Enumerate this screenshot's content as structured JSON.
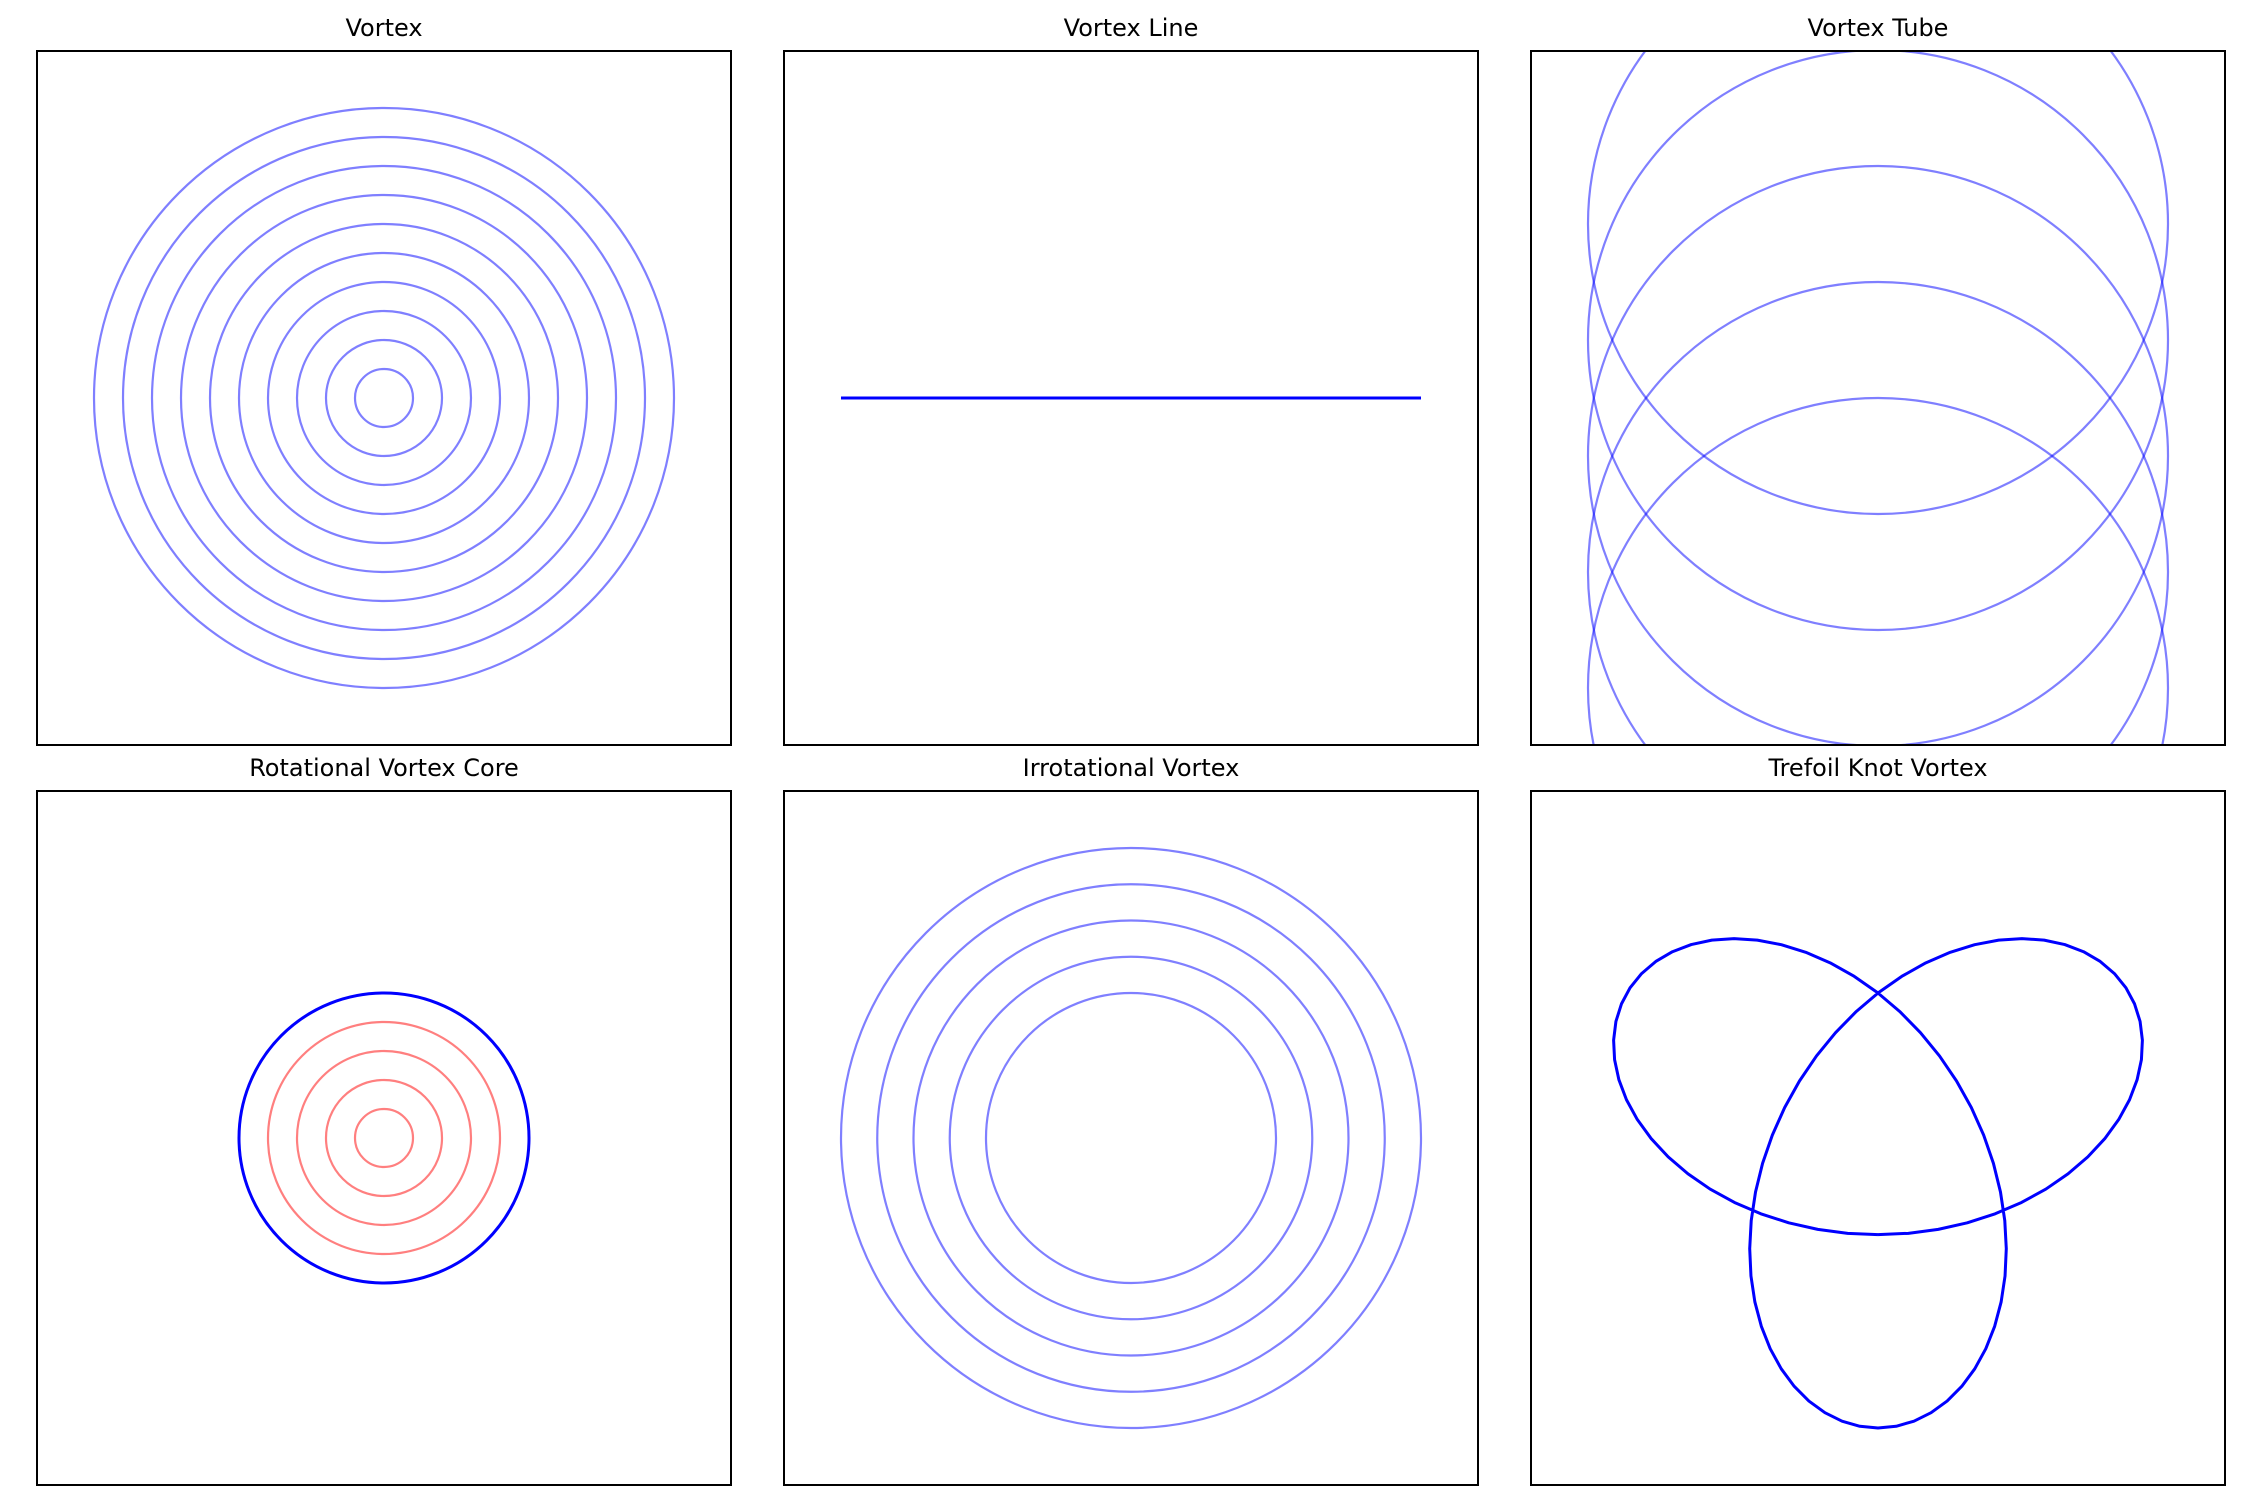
{
  "colors": {
    "primary": "#0000ff",
    "core": "#ff0000"
  },
  "chart_data": [
    {
      "type": "line",
      "title": "Vortex",
      "xlim": [
        -1.2,
        1.2
      ],
      "ylim": [
        -1.2,
        1.2
      ],
      "grid": false,
      "axes_ticks": false,
      "series": [
        {
          "kind": "circles",
          "center": [
            0,
            0
          ],
          "radii": [
            0.1,
            0.2,
            0.3,
            0.4,
            0.5,
            0.6,
            0.7,
            0.8,
            0.9,
            1.0
          ],
          "color": "#0000ff",
          "alpha": 0.5
        }
      ]
    },
    {
      "type": "line",
      "title": "Vortex Line",
      "xlim": [
        -1.2,
        1.2
      ],
      "ylim": [
        -1.2,
        1.2
      ],
      "grid": false,
      "axes_ticks": false,
      "series": [
        {
          "kind": "line",
          "x": [
            -1,
            1
          ],
          "y": [
            0,
            0
          ],
          "color": "#0000ff",
          "alpha": 1.0,
          "width": 2
        }
      ]
    },
    {
      "type": "line",
      "title": "Vortex Tube",
      "xlim": [
        -1.2,
        1.2
      ],
      "ylim": [
        -1.2,
        1.2
      ],
      "grid": false,
      "axes_ticks": false,
      "series": [
        {
          "kind": "circles_shift",
          "radius": 1.0,
          "center_x": 0,
          "center_y": [
            -1.0,
            -0.6,
            -0.2,
            0.2,
            0.6
          ],
          "color": "#0000ff",
          "alpha": 0.5
        }
      ]
    },
    {
      "type": "line",
      "title": "Rotational Vortex Core",
      "xlim": [
        -1.2,
        1.2
      ],
      "ylim": [
        -1.2,
        1.2
      ],
      "grid": false,
      "axes_ticks": false,
      "series": [
        {
          "kind": "circles",
          "center": [
            0,
            0
          ],
          "radii": [
            0.1,
            0.2,
            0.3,
            0.4
          ],
          "color": "#ff0000",
          "alpha": 0.5
        },
        {
          "kind": "circles",
          "center": [
            0,
            0
          ],
          "radii": [
            0.5
          ],
          "color": "#0000ff",
          "alpha": 1.0,
          "width": 2
        }
      ]
    },
    {
      "type": "line",
      "title": "Irrotational Vortex",
      "xlim": [
        -1.2,
        1.2
      ],
      "ylim": [
        -1.2,
        1.2
      ],
      "grid": false,
      "axes_ticks": false,
      "series": [
        {
          "kind": "circles",
          "center": [
            0,
            0
          ],
          "radii": [
            0.5,
            0.625,
            0.75,
            0.875,
            1.0
          ],
          "color": "#0000ff",
          "alpha": 0.5
        }
      ]
    },
    {
      "type": "line",
      "title": "Trefoil Knot Vortex",
      "xlim": [
        -1.2,
        1.2
      ],
      "ylim": [
        -1.2,
        1.2
      ],
      "grid": false,
      "axes_ticks": false,
      "series": [
        {
          "kind": "trefoil",
          "color": "#0000ff",
          "alpha": 1.0,
          "width": 2
        }
      ]
    }
  ]
}
